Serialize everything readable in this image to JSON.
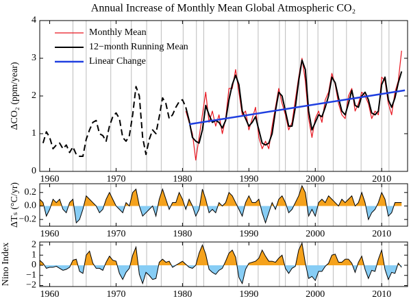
{
  "chart_data": [
    {
      "type": "line",
      "title": "Annual Increase of Monthly Mean Global Atmospheric CO₂",
      "ylabel": "ΔCO₂ (ppm/year)",
      "xlim": [
        1958.5,
        2013.9
      ],
      "ylim": [
        0,
        4
      ],
      "xticks": [
        1960,
        1970,
        1980,
        1990,
        2000,
        2010
      ],
      "yticks": [
        0,
        1,
        2,
        3,
        4
      ],
      "legend": "upper left",
      "event_years": [
        1963.5,
        1965.5,
        1969.2,
        1972.3,
        1974.6,
        1976.8,
        1980.1,
        1982.1,
        1983.2,
        1987.0,
        1988.3,
        1991.4,
        1994.6,
        1995.5,
        1997.6,
        1998.8,
        2000.4,
        2002.7,
        2004.7,
        2006.9,
        2010.0,
        2011.1
      ],
      "series": [
        {
          "color": "#000000",
          "dash": true,
          "x": [
            1959,
            1959.5,
            1960,
            1960.5,
            1961,
            1961.5,
            1962,
            1962.5,
            1963,
            1963.5,
            1964,
            1964.5,
            1965,
            1965.5,
            1966,
            1966.5,
            1967,
            1967.5,
            1968,
            1968.5,
            1969,
            1969.5,
            1970,
            1970.5,
            1971,
            1971.5,
            1972,
            1972.5,
            1973,
            1973.5,
            1974,
            1974.5,
            1975,
            1975.5,
            1976,
            1976.5,
            1977,
            1977.5,
            1978,
            1978.5,
            1979,
            1979.5,
            1980,
            1980.5
          ],
          "values": [
            0.75,
            1.05,
            0.9,
            0.6,
            0.7,
            0.75,
            0.6,
            0.7,
            0.5,
            0.65,
            0.45,
            0.4,
            0.4,
            0.85,
            1.1,
            1.3,
            1.35,
            1.0,
            0.95,
            0.8,
            1.2,
            1.45,
            1.55,
            1.4,
            0.9,
            0.8,
            0.95,
            1.5,
            2.25,
            2.0,
            0.9,
            0.45,
            0.85,
            1.1,
            1.0,
            1.45,
            1.95,
            1.8,
            1.4,
            1.5,
            1.7,
            1.85,
            1.9,
            1.7
          ]
        },
        {
          "name": "Monthly Mean",
          "color": "#e8141e",
          "width": 1.2,
          "x": [
            1980.5,
            1981,
            1981.5,
            1982,
            1982.5,
            1983,
            1983.5,
            1984,
            1984.5,
            1985,
            1985.5,
            1986,
            1986.5,
            1987,
            1987.5,
            1988,
            1988.5,
            1989,
            1989.5,
            1990,
            1990.5,
            1991,
            1991.5,
            1992,
            1992.5,
            1993,
            1993.5,
            1994,
            1994.5,
            1995,
            1995.5,
            1996,
            1996.5,
            1997,
            1997.5,
            1998,
            1998.5,
            1999,
            1999.5,
            2000,
            2000.5,
            2001,
            2001.5,
            2002,
            2002.5,
            2003,
            2003.5,
            2004,
            2004.5,
            2005,
            2005.5,
            2006,
            2006.5,
            2007,
            2007.5,
            2008,
            2008.5,
            2009,
            2009.5,
            2010,
            2010.5,
            2011,
            2011.5,
            2012,
            2012.5,
            2013
          ],
          "values": [
            1.6,
            1.3,
            1.0,
            0.3,
            0.9,
            1.5,
            2.1,
            1.3,
            1.6,
            1.2,
            1.5,
            1.0,
            1.4,
            2.2,
            2.2,
            2.7,
            2.1,
            1.5,
            1.6,
            1.1,
            1.4,
            1.7,
            0.9,
            0.6,
            0.8,
            0.6,
            1.2,
            1.7,
            2.2,
            1.8,
            1.5,
            1.1,
            1.3,
            1.9,
            2.5,
            3.0,
            2.4,
            1.4,
            0.9,
            1.4,
            1.6,
            1.3,
            1.9,
            2.1,
            2.6,
            2.3,
            1.8,
            1.5,
            1.4,
            2.0,
            2.2,
            1.6,
            1.8,
            2.1,
            2.0,
            1.8,
            1.4,
            1.6,
            1.5,
            2.5,
            2.4,
            1.8,
            1.5,
            2.1,
            2.4,
            3.2
          ]
        },
        {
          "name": "12−month Running Mean",
          "color": "#000000",
          "width": 2,
          "x": [
            1980.5,
            1981,
            1981.5,
            1982,
            1982.5,
            1983,
            1983.5,
            1984,
            1984.5,
            1985,
            1985.5,
            1986,
            1986.5,
            1987,
            1987.5,
            1988,
            1988.5,
            1989,
            1989.5,
            1990,
            1990.5,
            1991,
            1991.5,
            1992,
            1992.5,
            1993,
            1993.5,
            1994,
            1994.5,
            1995,
            1995.5,
            1996,
            1996.5,
            1997,
            1997.5,
            1998,
            1998.5,
            1999,
            1999.5,
            2000,
            2000.5,
            2001,
            2001.5,
            2002,
            2002.5,
            2003,
            2003.5,
            2004,
            2004.5,
            2005,
            2005.5,
            2006,
            2006.5,
            2007,
            2007.5,
            2008,
            2008.5,
            2009,
            2009.5,
            2010,
            2010.5,
            2011,
            2011.5,
            2012,
            2012.5,
            2013
          ],
          "values": [
            1.7,
            1.35,
            0.9,
            0.8,
            0.75,
            1.1,
            1.75,
            1.5,
            1.3,
            1.35,
            1.3,
            1.15,
            1.35,
            1.9,
            2.3,
            2.55,
            2.3,
            1.6,
            1.4,
            1.2,
            1.3,
            1.45,
            1.1,
            0.75,
            0.7,
            0.75,
            1.0,
            1.6,
            2.1,
            2.0,
            1.6,
            1.2,
            1.2,
            1.7,
            2.4,
            2.95,
            2.7,
            1.6,
            1.1,
            1.3,
            1.5,
            1.45,
            1.7,
            2.0,
            2.5,
            2.35,
            1.95,
            1.6,
            1.5,
            1.8,
            2.15,
            1.75,
            1.7,
            2.0,
            2.1,
            1.9,
            1.55,
            1.5,
            1.6,
            2.3,
            2.5,
            1.9,
            1.7,
            1.95,
            2.35,
            2.65
          ]
        },
        {
          "name": "Linear Change",
          "color": "#1f3fe0",
          "width": 2.5,
          "x": [
            1981,
            2013.5
          ],
          "values": [
            1.25,
            2.15
          ]
        }
      ]
    },
    {
      "type": "area",
      "ylabel": "ΔTₛ (°C/yr)",
      "xlim": [
        1958.5,
        2013.9
      ],
      "ylim": [
        -0.3,
        0.33
      ],
      "xticks": [
        1960,
        1970,
        1980,
        1990,
        2000,
        2010
      ],
      "yticks": [
        {
          "value": -0.2,
          "label": "−0.2"
        },
        {
          "value": 0,
          "label": "0.0"
        },
        0.2
      ],
      "color": "#000000",
      "positive_color": "#f5a21c",
      "negative_color": "#87cdf5",
      "x": [
        1958.5,
        1959,
        1959.5,
        1960,
        1960.5,
        1961,
        1961.5,
        1962,
        1962.5,
        1963,
        1963.5,
        1964,
        1964.5,
        1965,
        1965.5,
        1966,
        1966.5,
        1967,
        1967.5,
        1968,
        1968.5,
        1969,
        1969.5,
        1970,
        1970.5,
        1971,
        1971.5,
        1972,
        1972.5,
        1973,
        1973.5,
        1974,
        1974.5,
        1975,
        1975.5,
        1976,
        1976.5,
        1977,
        1977.5,
        1978,
        1978.5,
        1979,
        1979.5,
        1980,
        1980.5,
        1981,
        1981.5,
        1982,
        1982.5,
        1983,
        1983.5,
        1984,
        1984.5,
        1985,
        1985.5,
        1986,
        1986.5,
        1987,
        1987.5,
        1988,
        1988.5,
        1989,
        1989.5,
        1990,
        1990.5,
        1991,
        1991.5,
        1992,
        1992.5,
        1993,
        1993.5,
        1994,
        1994.5,
        1995,
        1995.5,
        1996,
        1996.5,
        1997,
        1997.5,
        1998,
        1998.5,
        1999,
        1999.5,
        2000,
        2000.5,
        2001,
        2001.5,
        2002,
        2002.5,
        2003,
        2003.5,
        2004,
        2004.5,
        2005,
        2005.5,
        2006,
        2006.5,
        2007,
        2007.5,
        2008,
        2008.5,
        2009,
        2009.5,
        2010,
        2010.5,
        2011,
        2011.5,
        2012,
        2012.5,
        2013
      ],
      "values": [
        0.1,
        0.05,
        -0.15,
        -0.05,
        0.1,
        0.05,
        0.1,
        -0.05,
        -0.1,
        0.05,
        0.1,
        -0.25,
        -0.2,
        -0.05,
        0.15,
        0.1,
        0.05,
        0.0,
        -0.1,
        -0.05,
        0.1,
        0.2,
        0.1,
        0.0,
        -0.05,
        -0.1,
        0.05,
        0.0,
        0.2,
        0.25,
        0.0,
        -0.15,
        -0.1,
        -0.05,
        0.0,
        -0.15,
        0.1,
        0.25,
        0.1,
        -0.05,
        0.05,
        0.05,
        0.2,
        0.1,
        -0.05,
        0.1,
        0.0,
        -0.15,
        -0.05,
        0.25,
        0.1,
        -0.1,
        -0.05,
        -0.1,
        0.05,
        0.0,
        0.05,
        0.2,
        0.15,
        0.05,
        -0.05,
        -0.15,
        0.05,
        0.15,
        0.05,
        0.05,
        0.1,
        -0.1,
        -0.25,
        -0.1,
        0.05,
        -0.05,
        0.1,
        0.15,
        0.05,
        -0.1,
        -0.05,
        0.05,
        0.15,
        0.3,
        0.2,
        -0.15,
        -0.05,
        -0.15,
        0.05,
        0.1,
        0.05,
        0.15,
        0.1,
        0.05,
        0.0,
        0.1,
        0.05,
        0.1,
        0.15,
        0.0,
        0.05,
        0.2,
        0.05,
        -0.2,
        -0.1,
        -0.05,
        0.05,
        0.2,
        0.1,
        -0.15,
        -0.1,
        0.05,
        0.05,
        0.05
      ]
    },
    {
      "type": "area",
      "ylabel": "Nino Index",
      "xlim": [
        1958.5,
        2013.9
      ],
      "ylim": [
        -2.1,
        2.3
      ],
      "xticks": [
        1960,
        1970,
        1980,
        1990,
        2000,
        2010
      ],
      "yticks": [
        {
          "value": -2,
          "label": "−2"
        },
        {
          "value": -1,
          "label": "−1"
        },
        0,
        1,
        2
      ],
      "color": "#000000",
      "positive_color": "#f5a21c",
      "negative_color": "#87cdf5",
      "x": [
        1958.5,
        1959,
        1959.5,
        1960,
        1960.5,
        1961,
        1961.5,
        1962,
        1962.5,
        1963,
        1963.5,
        1964,
        1964.5,
        1965,
        1965.5,
        1966,
        1966.5,
        1967,
        1967.5,
        1968,
        1968.5,
        1969,
        1969.5,
        1970,
        1970.5,
        1971,
        1971.5,
        1972,
        1972.5,
        1973,
        1973.5,
        1974,
        1974.5,
        1975,
        1975.5,
        1976,
        1976.5,
        1977,
        1977.5,
        1978,
        1978.5,
        1979,
        1979.5,
        1980,
        1980.5,
        1981,
        1981.5,
        1982,
        1982.5,
        1983,
        1983.5,
        1984,
        1984.5,
        1985,
        1985.5,
        1986,
        1986.5,
        1987,
        1987.5,
        1988,
        1988.5,
        1989,
        1989.5,
        1990,
        1990.5,
        1991,
        1991.5,
        1992,
        1992.5,
        1993,
        1993.5,
        1994,
        1994.5,
        1995,
        1995.5,
        1996,
        1996.5,
        1997,
        1997.5,
        1998,
        1998.5,
        1999,
        1999.5,
        2000,
        2000.5,
        2001,
        2001.5,
        2002,
        2002.5,
        2003,
        2003.5,
        2004,
        2004.5,
        2005,
        2005.5,
        2006,
        2006.5,
        2007,
        2007.5,
        2008,
        2008.5,
        2009,
        2009.5,
        2010,
        2010.5,
        2011,
        2011.5,
        2012,
        2012.5,
        2013
      ],
      "values": [
        0.5,
        0.2,
        -0.3,
        -0.2,
        -0.2,
        -0.1,
        -0.3,
        -0.5,
        -0.4,
        -0.2,
        0.5,
        0.6,
        -0.6,
        -0.8,
        1.0,
        1.4,
        0.2,
        -0.3,
        -0.3,
        -0.5,
        0.3,
        0.9,
        0.5,
        0.4,
        -0.8,
        -1.4,
        -0.7,
        -0.3,
        1.0,
        1.8,
        -0.9,
        -1.8,
        -0.7,
        -1.0,
        -1.4,
        -1.3,
        0.3,
        0.6,
        0.3,
        0.4,
        -0.2,
        0.0,
        0.2,
        0.4,
        0.1,
        -0.2,
        -0.3,
        0.0,
        1.2,
        2.0,
        1.1,
        -0.4,
        -0.7,
        -0.9,
        -0.5,
        -0.3,
        0.4,
        1.2,
        1.5,
        0.8,
        -1.2,
        -1.8,
        -0.4,
        0.2,
        0.3,
        0.4,
        0.7,
        1.5,
        0.9,
        0.4,
        0.4,
        0.3,
        0.7,
        1.0,
        -0.3,
        -0.8,
        -0.3,
        -0.1,
        1.5,
        2.2,
        0.2,
        -1.3,
        -1.1,
        -1.5,
        -0.6,
        -0.6,
        -0.1,
        0.2,
        1.0,
        1.1,
        0.3,
        0.3,
        0.6,
        0.6,
        0.2,
        -0.7,
        0.3,
        0.9,
        -0.4,
        -1.3,
        -0.5,
        -0.6,
        0.6,
        1.5,
        -0.4,
        -1.4,
        -0.7,
        -0.8,
        0.2,
        -0.2
      ]
    }
  ]
}
